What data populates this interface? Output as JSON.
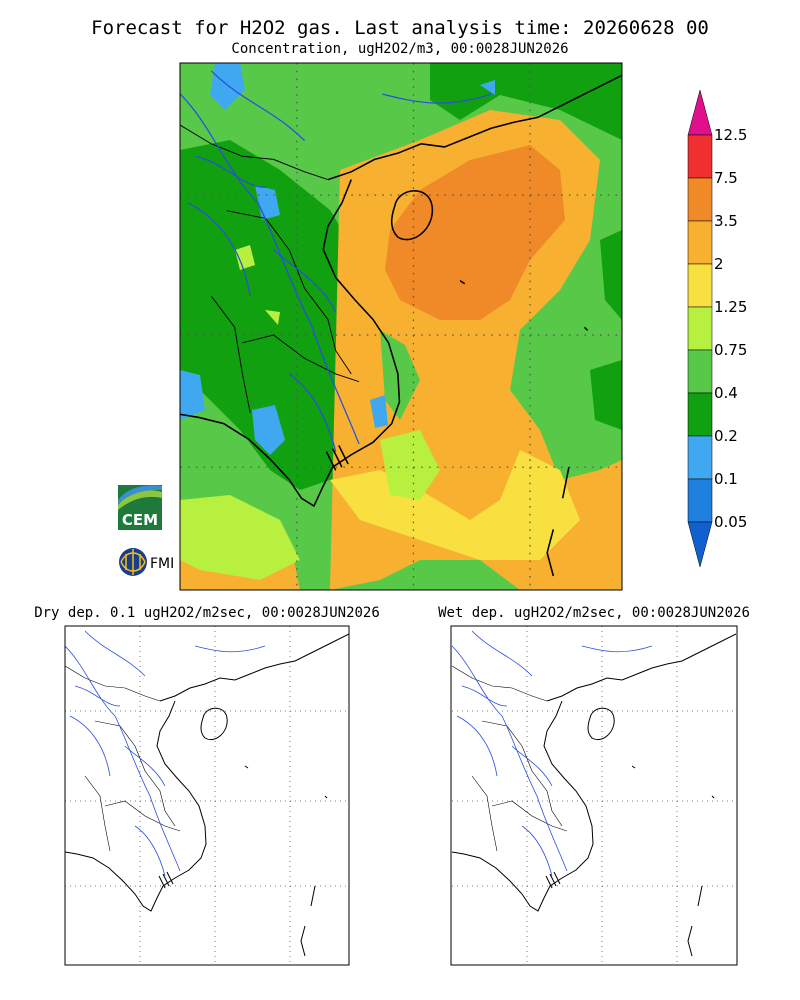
{
  "title": "Forecast for H2O2 gas. Last analysis time: 20260628 00",
  "subtitle": "Concentration, ugH2O2/m3, 00:0028JUN2026",
  "colorbar": {
    "levels": [
      12.5,
      7.5,
      3.5,
      2,
      1.25,
      0.75,
      0.4,
      0.2,
      0.1,
      0.05
    ],
    "colors": [
      "#e0108c",
      "#f03030",
      "#f08a28",
      "#f8b030",
      "#f8e040",
      "#b8f040",
      "#58c848",
      "#10a010",
      "#40a8f0",
      "#2080e0",
      "#1060d0"
    ]
  },
  "panels": [
    {
      "title": "Dry dep. 0.1 ugH2O2/m2sec, 00:0028JUN2026"
    },
    {
      "title": "Wet dep. ugH2O2/m2sec, 00:0028JUN2026"
    }
  ],
  "logos": [
    "CEM",
    "FMI"
  ]
}
